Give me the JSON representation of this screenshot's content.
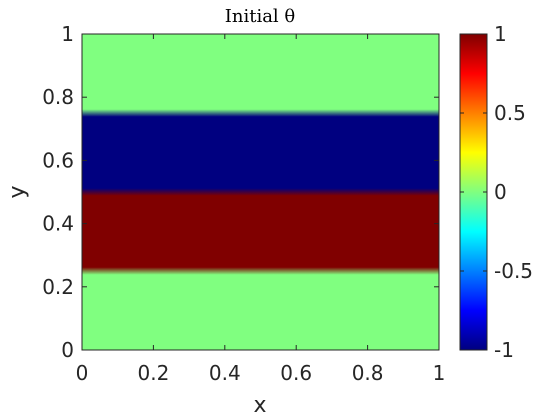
{
  "chart_data": {
    "type": "heatmap",
    "title": "Initial θ",
    "xlabel": "x",
    "ylabel": "y",
    "xlim": [
      0,
      1
    ],
    "ylim": [
      0,
      1
    ],
    "x_ticks": [
      "0",
      "0.2",
      "0.4",
      "0.6",
      "0.8",
      "1"
    ],
    "y_ticks": [
      "0",
      "0.2",
      "0.4",
      "0.6",
      "0.8",
      "1"
    ],
    "colormap": "jet",
    "colorbar": {
      "range": [
        -1,
        1
      ],
      "ticks": [
        "-1",
        "-0.5",
        "0",
        "0.5",
        "1"
      ],
      "placement": "right"
    },
    "grid": false,
    "bands": [
      {
        "y_from": 0.0,
        "y_to": 0.25,
        "value": 0
      },
      {
        "y_from": 0.25,
        "y_to": 0.5,
        "value": 1
      },
      {
        "y_from": 0.5,
        "y_to": 0.75,
        "value": -1
      },
      {
        "y_from": 0.75,
        "y_to": 1.0,
        "value": 0
      }
    ],
    "transition_width": 0.012
  }
}
